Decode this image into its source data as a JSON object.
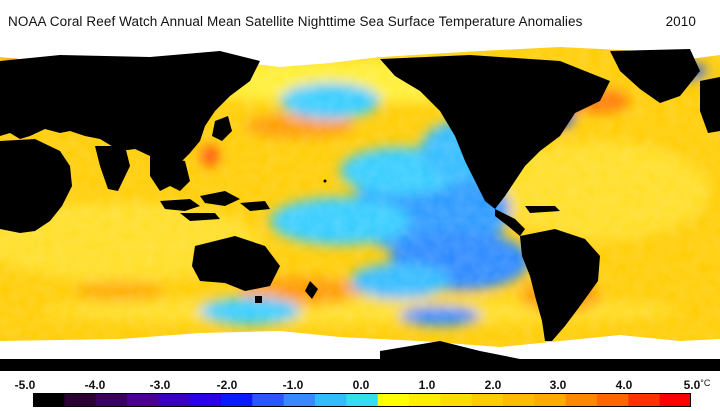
{
  "title": {
    "text": "NOAA Coral Reef Watch Annual Mean Satellite Nighttime Sea Surface Temperature Anomalies",
    "year": "2010"
  },
  "legend": {
    "tick_labels": [
      "-5.0",
      "-4.0",
      "-3.0",
      "-2.0",
      "-1.0",
      "0.0",
      "1.0",
      "2.0",
      "3.0",
      "4.0",
      "5.0"
    ],
    "unit": "°C",
    "colors": [
      "#000000",
      "#2a0035",
      "#3a0060",
      "#4a0090",
      "#3a00c0",
      "#2a00e8",
      "#0a1aff",
      "#2a55ff",
      "#3a88ff",
      "#33bbff",
      "#33ddee",
      "#ffff00",
      "#ffee00",
      "#ffdd00",
      "#ffcc00",
      "#ffbb00",
      "#ffaa00",
      "#ff8800",
      "#ff6600",
      "#ff3300",
      "#ff0000"
    ]
  },
  "map": {
    "land_color": "#000000",
    "sea_ice_color": "#ffffff",
    "anomaly_colors": {
      "warm_dominant": "#ffcc00",
      "warm_light": "#ffee33",
      "warm_strong": "#ff9900",
      "cool_light": "#33ccff",
      "cool": "#2a88ff",
      "cool_strong": "#1a44ff"
    }
  }
}
